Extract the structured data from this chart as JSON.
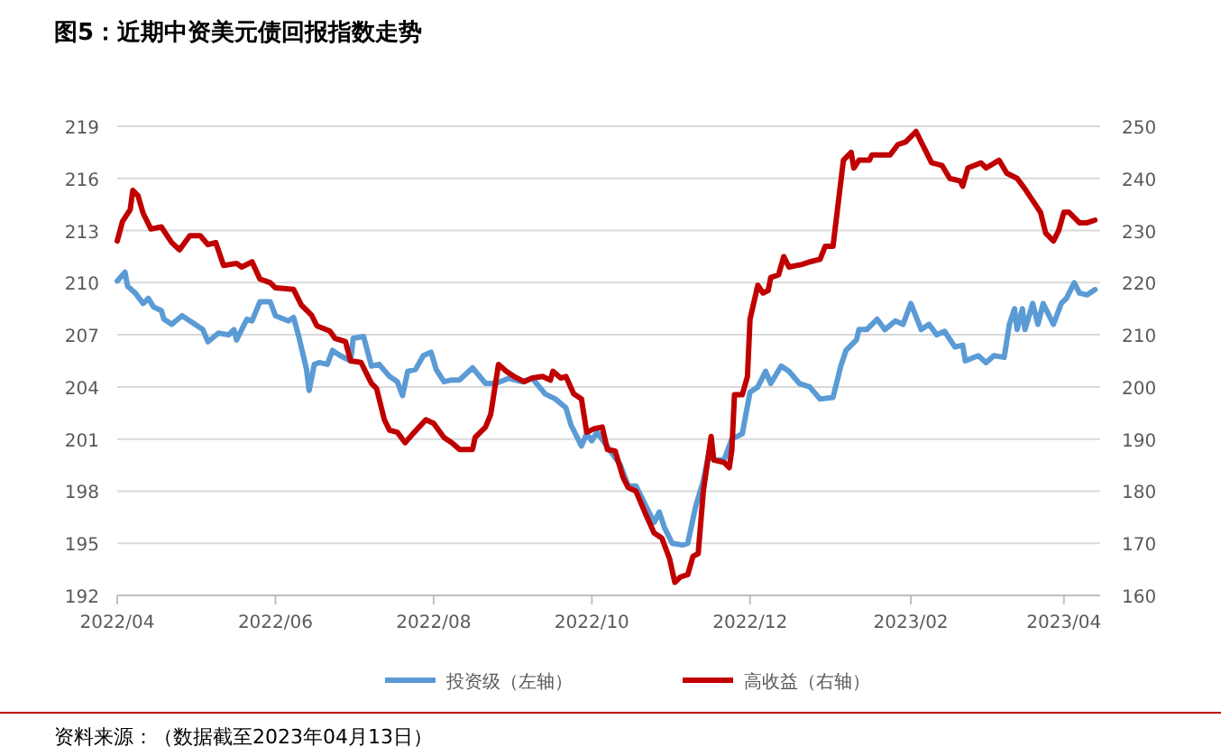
{
  "chart_data": {
    "type": "line",
    "title": "图5：近期中资美元债回报指数走势",
    "xlim": [
      "2022-04-01",
      "2023-04-15"
    ],
    "xticks": [
      {
        "value": "2022-04-01",
        "label": "2022/04"
      },
      {
        "value": "2022-06-01",
        "label": "2022/06"
      },
      {
        "value": "2022-08-01",
        "label": "2022/08"
      },
      {
        "value": "2022-10-01",
        "label": "2022/10"
      },
      {
        "value": "2022-12-01",
        "label": "2022/12"
      },
      {
        "value": "2023-02-01",
        "label": "2023/02"
      },
      {
        "value": "2023-04-01",
        "label": "2023/04"
      }
    ],
    "ylim": [
      192,
      219
    ],
    "yticks": [
      192,
      195,
      198,
      201,
      204,
      207,
      210,
      213,
      216,
      219
    ],
    "y2lim": [
      160,
      250
    ],
    "y2ticks": [
      160,
      170,
      180,
      190,
      200,
      210,
      220,
      230,
      240,
      250
    ],
    "grid": "y",
    "legend": "bottom",
    "line_style": "solid",
    "annotations": [
      "资料来源：（数据截至2023年04月13日）"
    ],
    "series": [
      {
        "name": "投资级（左轴）",
        "color": "#5b9bd5",
        "x": [
          "2022-04-01",
          "2022-04-04",
          "2022-04-05",
          "2022-04-08",
          "2022-04-11",
          "2022-04-13",
          "2022-04-15",
          "2022-04-18",
          "2022-04-19",
          "2022-04-22",
          "2022-04-26",
          "2022-05-01",
          "2022-05-04",
          "2022-05-06",
          "2022-05-10",
          "2022-05-14",
          "2022-05-16",
          "2022-05-17",
          "2022-05-21",
          "2022-05-23",
          "2022-05-26",
          "2022-05-30",
          "2022-06-01",
          "2022-06-06",
          "2022-06-08",
          "2022-06-10",
          "2022-06-13",
          "2022-06-14",
          "2022-06-16",
          "2022-06-18",
          "2022-06-21",
          "2022-06-23",
          "2022-06-26",
          "2022-06-30",
          "2022-07-01",
          "2022-07-05",
          "2022-07-08",
          "2022-07-11",
          "2022-07-15",
          "2022-07-18",
          "2022-07-20",
          "2022-07-22",
          "2022-07-25",
          "2022-07-28",
          "2022-07-31",
          "2022-08-02",
          "2022-08-05",
          "2022-08-08",
          "2022-08-11",
          "2022-08-16",
          "2022-08-21",
          "2022-08-25",
          "2022-08-30",
          "2022-09-04",
          "2022-09-08",
          "2022-09-13",
          "2022-09-17",
          "2022-09-21",
          "2022-09-23",
          "2022-09-27",
          "2022-09-29",
          "2022-10-01",
          "2022-10-03",
          "2022-10-12",
          "2022-10-15",
          "2022-10-18",
          "2022-10-22",
          "2022-10-25",
          "2022-10-27",
          "2022-10-29",
          "2022-11-01",
          "2022-11-05",
          "2022-11-07",
          "2022-11-10",
          "2022-11-13",
          "2022-11-15",
          "2022-11-17",
          "2022-11-21",
          "2022-11-24",
          "2022-11-28",
          "2022-12-01",
          "2022-12-04",
          "2022-12-07",
          "2022-12-09",
          "2022-12-13",
          "2022-12-16",
          "2022-12-20",
          "2022-12-24",
          "2022-12-28",
          "2023-01-02",
          "2023-01-05",
          "2023-01-07",
          "2023-01-11",
          "2023-01-12",
          "2023-01-15",
          "2023-01-19",
          "2023-01-22",
          "2023-01-26",
          "2023-01-29",
          "2023-02-01",
          "2023-02-05",
          "2023-02-08",
          "2023-02-11",
          "2023-02-14",
          "2023-02-18",
          "2023-02-21",
          "2023-02-22",
          "2023-02-27",
          "2023-03-02",
          "2023-03-05",
          "2023-03-09",
          "2023-03-11",
          "2023-03-13",
          "2023-03-14",
          "2023-03-16",
          "2023-03-17",
          "2023-03-20",
          "2023-03-22",
          "2023-03-24",
          "2023-03-28",
          "2023-03-31",
          "2023-04-02",
          "2023-04-05",
          "2023-04-07",
          "2023-04-10",
          "2023-04-13"
        ],
        "values": [
          210.1,
          210.6,
          209.8,
          209.4,
          208.8,
          209.1,
          208.6,
          208.4,
          207.9,
          207.6,
          208.1,
          207.6,
          207.3,
          206.6,
          207.1,
          207.0,
          207.3,
          206.7,
          207.9,
          207.8,
          208.9,
          208.9,
          208.1,
          207.8,
          208.0,
          206.9,
          205.0,
          203.8,
          205.3,
          205.4,
          205.3,
          206.1,
          205.8,
          205.5,
          206.8,
          206.9,
          205.2,
          205.3,
          204.6,
          204.3,
          203.5,
          204.9,
          205.0,
          205.8,
          206.0,
          205.0,
          204.3,
          204.4,
          204.4,
          205.1,
          204.2,
          204.2,
          204.5,
          204.3,
          204.5,
          203.6,
          203.3,
          202.8,
          201.8,
          200.6,
          201.3,
          200.9,
          201.4,
          199.5,
          198.3,
          198.3,
          197.1,
          196.2,
          196.8,
          195.9,
          195.0,
          194.9,
          195.0,
          197.1,
          198.6,
          200.1,
          199.8,
          199.8,
          201.0,
          201.3,
          203.7,
          204.0,
          204.9,
          204.2,
          205.2,
          204.9,
          204.2,
          204.0,
          203.3,
          203.4,
          205.2,
          206.1,
          206.7,
          207.3,
          207.3,
          207.9,
          207.3,
          207.8,
          207.6,
          208.8,
          207.3,
          207.6,
          207.0,
          207.2,
          206.3,
          206.4,
          205.5,
          205.8,
          205.4,
          205.8,
          205.7,
          207.6,
          208.5,
          207.3,
          208.5,
          207.3,
          208.8,
          207.6,
          208.8,
          207.6,
          208.8,
          209.1,
          210.0,
          209.4,
          209.3,
          209.6
        ]
      },
      {
        "name": "高收益（右轴）",
        "color": "#c00000",
        "axis": "y2",
        "x": [
          "2022-04-01",
          "2022-04-03",
          "2022-04-06",
          "2022-04-07",
          "2022-04-09",
          "2022-04-11",
          "2022-04-14",
          "2022-04-18",
          "2022-04-22",
          "2022-04-25",
          "2022-04-29",
          "2022-05-03",
          "2022-05-06",
          "2022-05-09",
          "2022-05-12",
          "2022-05-17",
          "2022-05-19",
          "2022-05-23",
          "2022-05-26",
          "2022-05-30",
          "2022-06-01",
          "2022-06-08",
          "2022-06-11",
          "2022-06-15",
          "2022-06-17",
          "2022-06-22",
          "2022-06-24",
          "2022-06-28",
          "2022-06-30",
          "2022-07-04",
          "2022-07-08",
          "2022-07-10",
          "2022-07-13",
          "2022-07-15",
          "2022-07-18",
          "2022-07-21",
          "2022-07-24",
          "2022-07-29",
          "2022-08-01",
          "2022-08-05",
          "2022-08-08",
          "2022-08-11",
          "2022-08-16",
          "2022-08-17",
          "2022-08-21",
          "2022-08-23",
          "2022-08-26",
          "2022-08-29",
          "2022-09-01",
          "2022-09-05",
          "2022-09-08",
          "2022-09-12",
          "2022-09-15",
          "2022-09-16",
          "2022-09-19",
          "2022-09-21",
          "2022-09-24",
          "2022-09-27",
          "2022-09-29",
          "2022-10-02",
          "2022-10-05",
          "2022-10-07",
          "2022-10-10",
          "2022-10-13",
          "2022-10-15",
          "2022-10-18",
          "2022-10-22",
          "2022-10-25",
          "2022-10-28",
          "2022-10-31",
          "2022-11-02",
          "2022-11-04",
          "2022-11-07",
          "2022-11-09",
          "2022-11-11",
          "2022-11-13",
          "2022-11-16",
          "2022-11-17",
          "2022-11-21",
          "2022-11-23",
          "2022-11-24",
          "2022-11-25",
          "2022-11-28",
          "2022-11-30",
          "2022-12-01",
          "2022-12-04",
          "2022-12-06",
          "2022-12-08",
          "2022-12-09",
          "2022-12-12",
          "2022-12-14",
          "2022-12-16",
          "2022-12-21",
          "2022-12-24",
          "2022-12-28",
          "2022-12-30",
          "2023-01-02",
          "2023-01-06",
          "2023-01-09",
          "2023-01-10",
          "2023-01-12",
          "2023-01-16",
          "2023-01-17",
          "2023-01-24",
          "2023-01-27",
          "2023-01-30",
          "2023-02-03",
          "2023-02-06",
          "2023-02-09",
          "2023-02-13",
          "2023-02-16",
          "2023-02-20",
          "2023-02-21",
          "2023-02-23",
          "2023-02-28",
          "2023-03-02",
          "2023-03-07",
          "2023-03-10",
          "2023-03-14",
          "2023-03-17",
          "2023-03-21",
          "2023-03-23",
          "2023-03-25",
          "2023-03-28",
          "2023-03-30",
          "2023-04-01",
          "2023-04-03",
          "2023-04-07",
          "2023-04-10",
          "2023-04-13"
        ],
        "values": [
          228,
          231.7,
          234,
          237.7,
          236.7,
          233.3,
          230.3,
          230.7,
          227.7,
          226.3,
          229,
          229,
          227.3,
          227.7,
          223.3,
          223.7,
          223,
          224,
          220.7,
          220,
          219,
          218.7,
          215.7,
          213.7,
          211.7,
          210.7,
          209.3,
          208.7,
          205,
          204.7,
          200.7,
          199.7,
          193.7,
          191.7,
          191.3,
          189.3,
          191,
          193.7,
          193,
          190.3,
          189.3,
          188,
          188,
          190.3,
          192.3,
          194.7,
          204.3,
          203,
          202,
          201,
          201.7,
          202,
          201.3,
          203,
          201.7,
          202,
          198.7,
          197.7,
          191.3,
          192,
          192.3,
          188,
          187.7,
          182.7,
          180.7,
          180,
          175.3,
          172,
          171,
          167,
          162.5,
          163.5,
          164,
          167.5,
          168,
          180,
          190.5,
          186,
          185.5,
          184.5,
          188,
          198.5,
          198.5,
          202,
          213,
          219.5,
          218,
          218.5,
          221,
          221.5,
          225,
          223,
          223.5,
          224,
          224.5,
          227,
          227,
          243.5,
          245,
          242,
          243.5,
          243.5,
          244.5,
          244.5,
          246.5,
          247,
          249,
          246,
          243,
          242.5,
          240,
          239.5,
          238.5,
          242,
          243,
          242,
          243.5,
          241,
          240,
          238,
          235,
          233.5,
          229.5,
          228,
          230,
          233.5,
          233.5,
          231.5,
          231.5,
          232
        ]
      }
    ]
  }
}
